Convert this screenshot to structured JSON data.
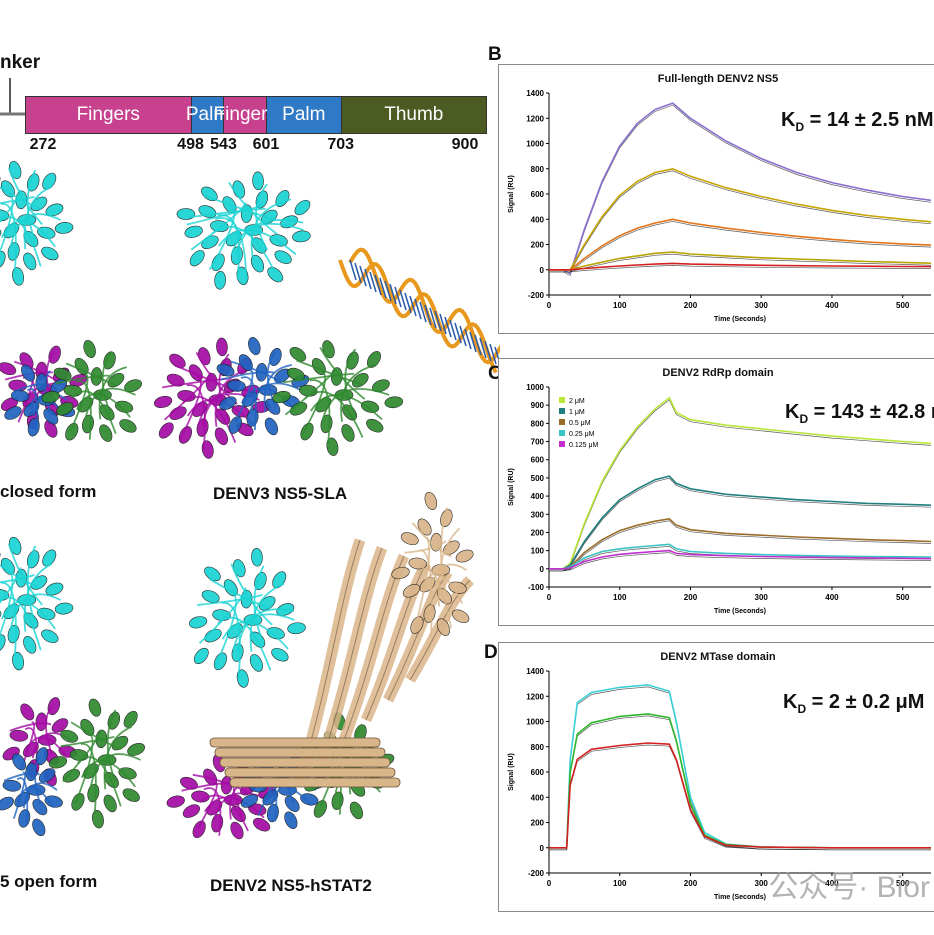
{
  "domain_map": {
    "linker_label": "nker",
    "segments": [
      {
        "label": "Fingers",
        "start": 272,
        "end": 498,
        "color": "#c7418f"
      },
      {
        "label": "Palm",
        "start": 498,
        "end": 543,
        "color": "#2f7ac7"
      },
      {
        "label": "Fingers",
        "start": 543,
        "end": 601,
        "color": "#c7418f"
      },
      {
        "label": "Palm",
        "start": 601,
        "end": 703,
        "color": "#2f7ac7"
      },
      {
        "label": "Thumb",
        "start": 703,
        "end": 900,
        "color": "#4c5b22"
      }
    ],
    "residues": [
      "272",
      "498",
      "543",
      "601",
      "703",
      "900"
    ]
  },
  "structures": {
    "top_left_caption": "closed form",
    "top_right_caption": "DENV3 NS5-SLA",
    "bottom_left_caption": "5 open form",
    "bottom_right_caption": "DENV2 NS5-hSTAT2"
  },
  "structure_colors": {
    "mtase": "#19d3d3",
    "fingers": "#a40aa4",
    "palm": "#1f63c0",
    "thumb": "#2f8a2f",
    "rna": "#e8981c",
    "stat2": "#d9b58a"
  },
  "watermark": "公众号· Bior",
  "panels": [
    {
      "letter": "B",
      "title": "Full-length DENV2 NS5",
      "kd": "14 ± 2.5 nM",
      "kd_prefix": "K",
      "kd_sub": "D",
      "xlabel": "Time (Seconds)",
      "ylabel": "Signal (RU)",
      "legend": []
    },
    {
      "letter": "C",
      "title": "DENV2 RdRp domain",
      "kd": "143 ± 42.8 n",
      "kd_prefix": "K",
      "kd_sub": "D",
      "xlabel": "Time (Seconds)",
      "ylabel": "Signal (RU)",
      "legend": [
        "2 μM",
        "1 μM",
        "0.5 μM",
        "0.25 μM",
        "0.125 μM"
      ]
    },
    {
      "letter": "D",
      "title": "DENV2 MTase domain",
      "kd": "2 ± 0.2 μM",
      "kd_prefix": "K",
      "kd_sub": "D",
      "xlabel": "Time (Seconds)",
      "ylabel": "Signal (RU)",
      "legend": []
    }
  ],
  "chart_data": [
    {
      "type": "line",
      "title": "Full-length DENV2 NS5",
      "xlabel": "Time (Seconds)",
      "ylabel": "Signal (RU)",
      "xlim": [
        0,
        540
      ],
      "ylim": [
        -200,
        1400
      ],
      "xticks": [
        0,
        100,
        200,
        300,
        400,
        500
      ],
      "yticks": [
        -200,
        0,
        200,
        400,
        600,
        800,
        1000,
        1200,
        1400
      ],
      "x": [
        0,
        20,
        30,
        50,
        75,
        100,
        125,
        150,
        175,
        200,
        250,
        300,
        350,
        400,
        450,
        500,
        540
      ],
      "series": [
        {
          "color": "#8a6fd0",
          "values": [
            0,
            0,
            -30,
            320,
            700,
            980,
            1160,
            1270,
            1320,
            1200,
            1020,
            880,
            770,
            690,
            630,
            580,
            550
          ]
        },
        {
          "color": "#c9a400",
          "values": [
            0,
            0,
            0,
            200,
            420,
            590,
            700,
            770,
            800,
            740,
            650,
            580,
            520,
            470,
            430,
            400,
            380
          ]
        },
        {
          "color": "#e37418",
          "values": [
            0,
            0,
            0,
            90,
            190,
            270,
            330,
            370,
            400,
            370,
            330,
            295,
            265,
            240,
            220,
            205,
            195
          ]
        },
        {
          "color": "#b8a400",
          "values": [
            0,
            0,
            0,
            30,
            60,
            90,
            110,
            130,
            140,
            125,
            110,
            95,
            85,
            75,
            65,
            58,
            52
          ]
        },
        {
          "color": "#d42020",
          "values": [
            0,
            0,
            0,
            10,
            20,
            30,
            38,
            45,
            50,
            45,
            40,
            35,
            32,
            30,
            28,
            26,
            25
          ]
        }
      ]
    },
    {
      "type": "line",
      "title": "DENV2 RdRp domain",
      "xlabel": "Time (Seconds)",
      "ylabel": "Signal (RU)",
      "xlim": [
        0,
        540
      ],
      "ylim": [
        -100,
        1000
      ],
      "xticks": [
        0,
        100,
        200,
        300,
        400,
        500
      ],
      "yticks": [
        -100,
        0,
        100,
        200,
        300,
        400,
        500,
        600,
        700,
        800,
        900,
        1000
      ],
      "x": [
        0,
        20,
        30,
        50,
        75,
        100,
        125,
        150,
        170,
        180,
        200,
        250,
        300,
        350,
        400,
        450,
        500,
        540
      ],
      "series": [
        {
          "name": "2 μM",
          "color": "#b8e636",
          "values": [
            0,
            0,
            30,
            250,
            480,
            650,
            780,
            880,
            940,
            860,
            820,
            790,
            770,
            750,
            730,
            715,
            700,
            690
          ]
        },
        {
          "name": "1 μM",
          "color": "#1f7f7f",
          "values": [
            0,
            0,
            20,
            150,
            280,
            380,
            440,
            490,
            510,
            470,
            440,
            410,
            395,
            380,
            370,
            360,
            355,
            350
          ]
        },
        {
          "name": "0.5 μM",
          "color": "#9a6c2a",
          "values": [
            0,
            0,
            10,
            90,
            160,
            210,
            240,
            262,
            275,
            240,
            215,
            195,
            185,
            175,
            168,
            160,
            155,
            150
          ]
        },
        {
          "name": "0.25 μM",
          "color": "#39c4c4",
          "values": [
            0,
            0,
            10,
            60,
            95,
            110,
            120,
            128,
            135,
            110,
            95,
            85,
            78,
            74,
            70,
            68,
            66,
            65
          ]
        },
        {
          "name": "0.125 μM",
          "color": "#c02fd0",
          "values": [
            0,
            0,
            5,
            40,
            65,
            80,
            88,
            95,
            100,
            85,
            78,
            72,
            68,
            65,
            62,
            60,
            58,
            56
          ]
        }
      ]
    },
    {
      "type": "line",
      "title": "DENV2 MTase domain",
      "xlabel": "Time (Seconds)",
      "ylabel": "Signal (RU)",
      "xlim": [
        0,
        540
      ],
      "ylim": [
        -200,
        1400
      ],
      "xticks": [
        0,
        100,
        200,
        300,
        400,
        500
      ],
      "yticks": [
        -200,
        0,
        200,
        400,
        600,
        800,
        1000,
        1200,
        1400
      ],
      "x": [
        0,
        20,
        25,
        30,
        40,
        60,
        100,
        140,
        170,
        180,
        200,
        220,
        250,
        300,
        400,
        540
      ],
      "series": [
        {
          "color": "#3ad0d8",
          "values": [
            0,
            0,
            0,
            700,
            1150,
            1230,
            1270,
            1290,
            1240,
            1000,
            400,
            120,
            30,
            5,
            0,
            0
          ]
        },
        {
          "color": "#2eb82e",
          "values": [
            0,
            0,
            0,
            600,
            900,
            990,
            1040,
            1060,
            1030,
            850,
            350,
            100,
            25,
            5,
            0,
            0
          ]
        },
        {
          "color": "#d42020",
          "values": [
            0,
            0,
            0,
            500,
            700,
            780,
            810,
            830,
            820,
            700,
            300,
            90,
            20,
            5,
            0,
            0
          ]
        }
      ]
    }
  ]
}
